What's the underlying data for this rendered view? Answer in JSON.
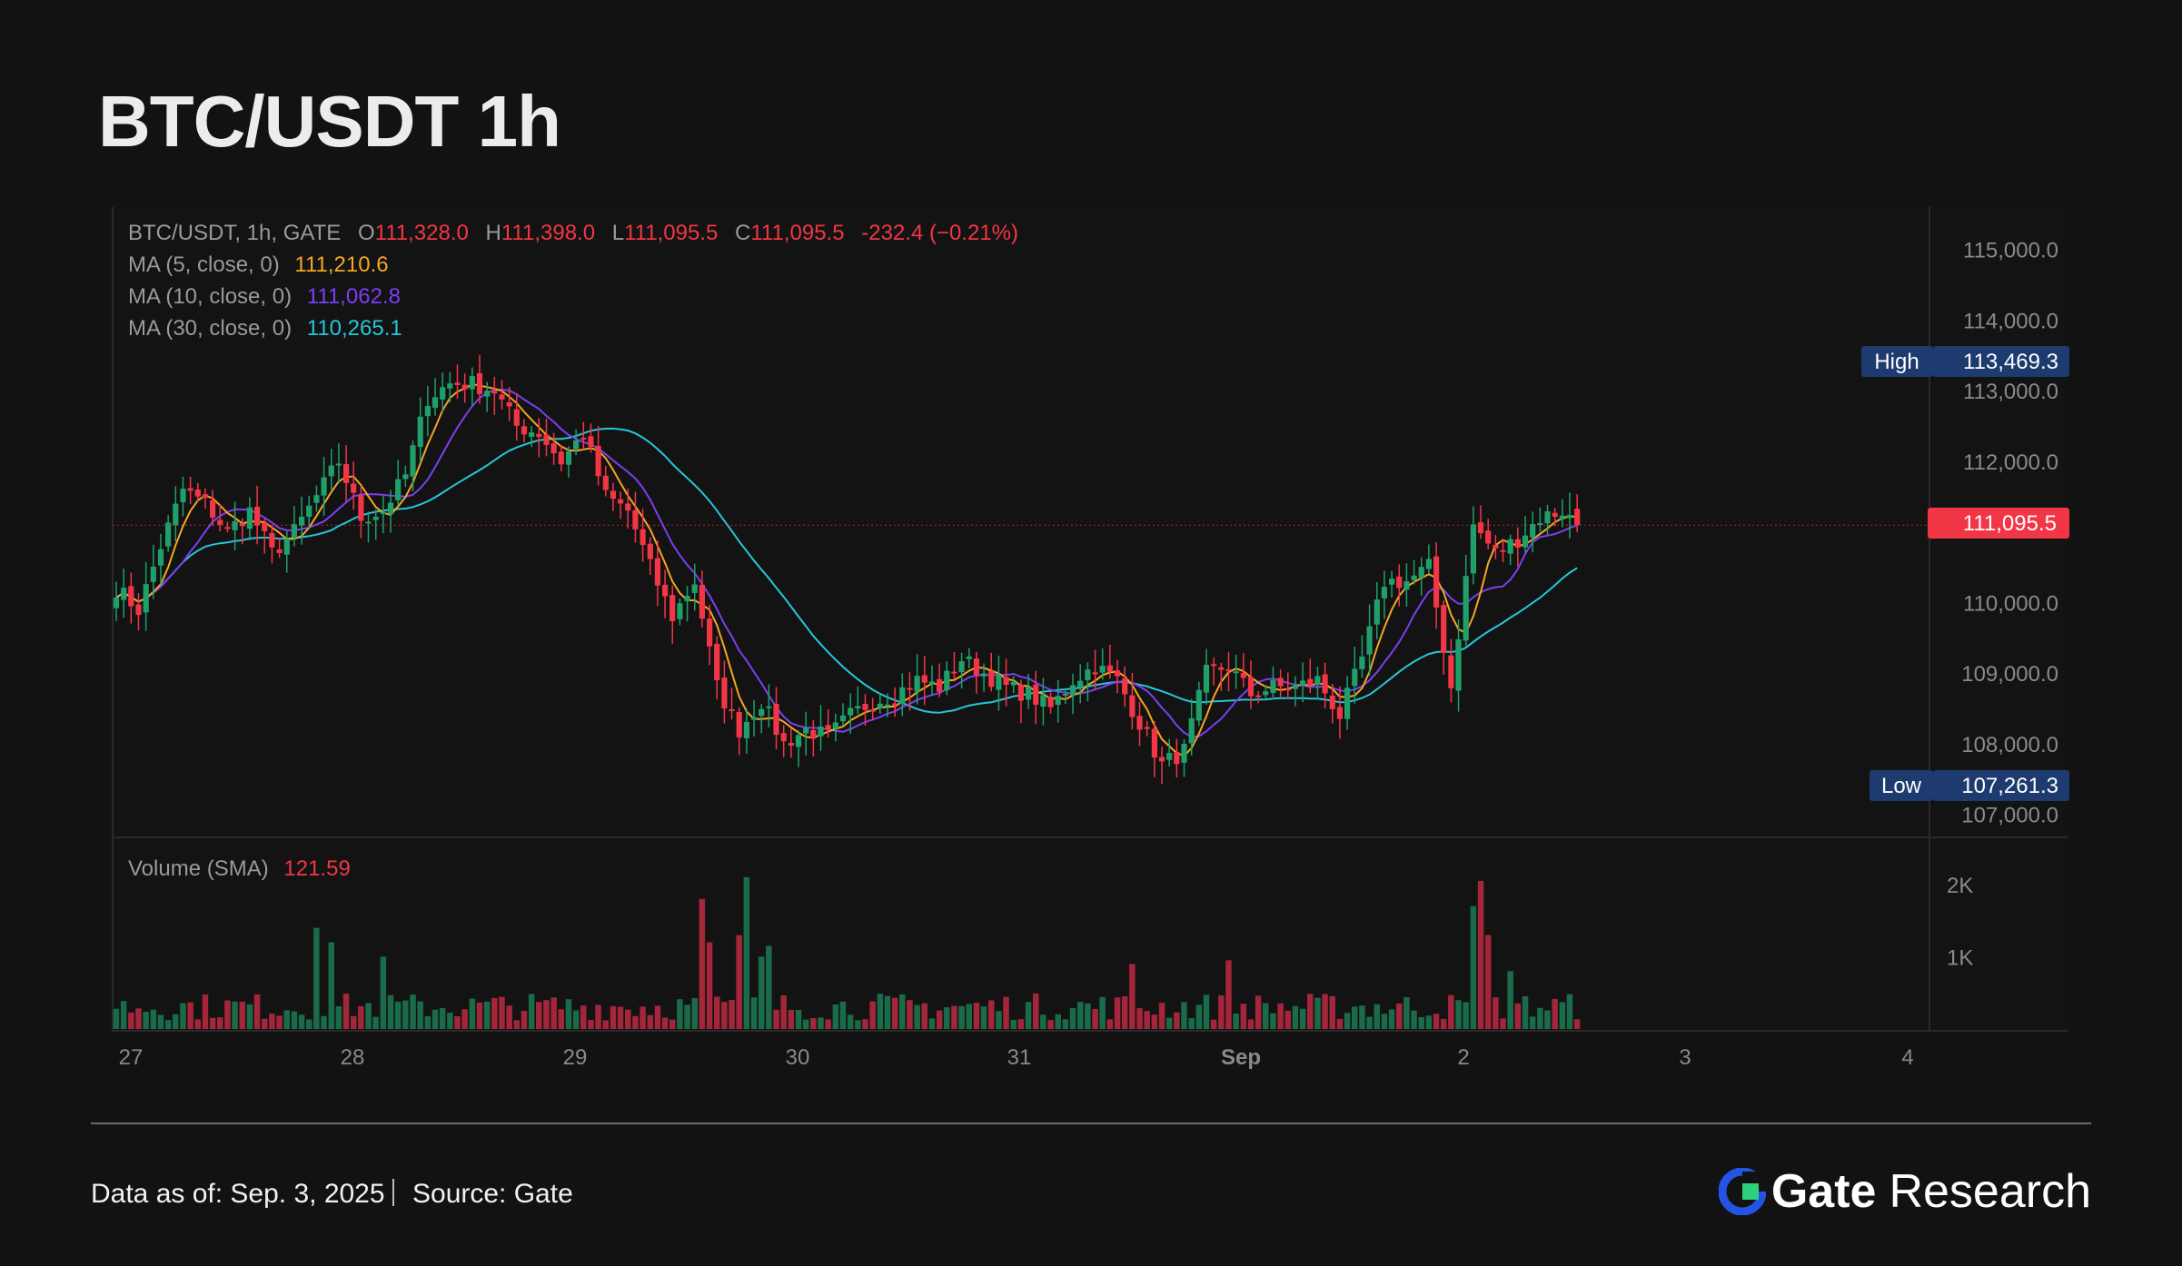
{
  "title": "BTC/USDT 1h",
  "legend": {
    "main_prefix": "BTC/USDT, 1h, GATE",
    "open_label": "O",
    "open": "111,328.0",
    "high_label": "H",
    "high": "111,398.0",
    "low_label": "L",
    "low": "111,095.5",
    "close_label": "C",
    "close": "111,095.5",
    "change": "-232.4 (−0.21%)",
    "ma5_label": "MA (5, close, 0)",
    "ma5": "111,210.6",
    "ma10_label": "MA (10, close, 0)",
    "ma10": "111,062.8",
    "ma30_label": "MA (30, close, 0)",
    "ma30": "110,265.1",
    "volume_label": "Volume (SMA)",
    "volume": "121.59"
  },
  "chart_data": {
    "type": "candlestick",
    "interval": "1h",
    "y_axis": {
      "min": 106700,
      "max": 115600,
      "ticks": [
        "115,000.0",
        "114,000.0",
        "113,000.0",
        "112,000.0",
        "110,000.0",
        "109,000.0",
        "108,000.0",
        "107,000.0"
      ]
    },
    "high_marker": {
      "label": "High",
      "value": "113,469.3"
    },
    "low_marker": {
      "label": "Low",
      "value": "107,261.3"
    },
    "last_price": "111,095.5",
    "x_ticks": [
      "27",
      "28",
      "29",
      "30",
      "31",
      "Sep",
      "2",
      "3",
      "4"
    ],
    "volume_axis": {
      "ticks": [
        "2K",
        "1K"
      ]
    },
    "anchors": [
      [
        0,
        110200
      ],
      [
        3,
        109900
      ],
      [
        6,
        110800
      ],
      [
        9,
        111600
      ],
      [
        12,
        111400
      ],
      [
        15,
        111000
      ],
      [
        18,
        111300
      ],
      [
        21,
        110700
      ],
      [
        24,
        111000
      ],
      [
        27,
        111500
      ],
      [
        30,
        112000
      ],
      [
        33,
        111200
      ],
      [
        36,
        111300
      ],
      [
        39,
        111800
      ],
      [
        42,
        112900
      ],
      [
        45,
        113100
      ],
      [
        48,
        113100
      ],
      [
        51,
        113000
      ],
      [
        54,
        112500
      ],
      [
        57,
        112400
      ],
      [
        60,
        112000
      ],
      [
        63,
        112400
      ],
      [
        66,
        111500
      ],
      [
        69,
        111300
      ],
      [
        72,
        110500
      ],
      [
        75,
        109800
      ],
      [
        78,
        110300
      ],
      [
        81,
        108800
      ],
      [
        84,
        108200
      ],
      [
        87,
        108600
      ],
      [
        90,
        108000
      ],
      [
        93,
        108200
      ],
      [
        96,
        108100
      ],
      [
        99,
        108400
      ],
      [
        102,
        108600
      ],
      [
        105,
        108700
      ],
      [
        108,
        108900
      ],
      [
        111,
        108800
      ],
      [
        114,
        109200
      ],
      [
        117,
        109000
      ],
      [
        120,
        108800
      ],
      [
        123,
        108700
      ],
      [
        126,
        108500
      ],
      [
        129,
        108900
      ],
      [
        132,
        109100
      ],
      [
        135,
        108900
      ],
      [
        138,
        108300
      ],
      [
        141,
        107700
      ],
      [
        144,
        107900
      ],
      [
        147,
        109000
      ],
      [
        150,
        109100
      ],
      [
        153,
        108700
      ],
      [
        156,
        108800
      ],
      [
        159,
        108800
      ],
      [
        162,
        108900
      ],
      [
        165,
        108400
      ],
      [
        168,
        109200
      ],
      [
        171,
        110300
      ],
      [
        174,
        110300
      ],
      [
        177,
        110500
      ],
      [
        180,
        108800
      ],
      [
        183,
        111100
      ],
      [
        186,
        110700
      ],
      [
        189,
        110900
      ],
      [
        192,
        111200
      ],
      [
        195,
        111300
      ],
      [
        197,
        111100
      ]
    ],
    "volume_spikes": [
      [
        27,
        1400
      ],
      [
        29,
        1200
      ],
      [
        36,
        1000
      ],
      [
        79,
        1800
      ],
      [
        80,
        1200
      ],
      [
        84,
        1300
      ],
      [
        85,
        2100
      ],
      [
        87,
        1000
      ],
      [
        88,
        1150
      ],
      [
        137,
        900
      ],
      [
        150,
        950
      ],
      [
        183,
        1700
      ],
      [
        184,
        2050
      ],
      [
        185,
        1300
      ],
      [
        188,
        800
      ]
    ],
    "volume_max": 2300
  }
}
